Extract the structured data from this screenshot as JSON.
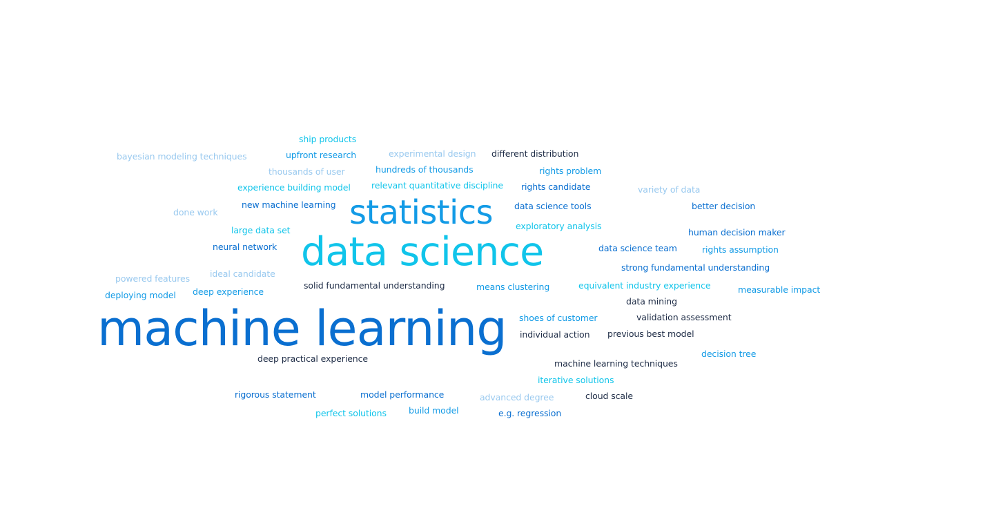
{
  "colors": {
    "blue": "#0a6fd0",
    "cyan": "#10c4ea",
    "sky": "#139be6",
    "pale": "#99c9ef",
    "dark": "#1e2c46",
    "background": "#ffffff"
  },
  "word_cloud": {
    "words": [
      {
        "id": "w-ml",
        "text": "machine learning",
        "weight": "xl",
        "color": "blue"
      },
      {
        "id": "w-ds",
        "text": "data science",
        "weight": "lg",
        "color": "cyan"
      },
      {
        "id": "w-st",
        "text": "statistics",
        "weight": "md",
        "color": "sky"
      },
      {
        "id": "w-1",
        "text": "ship products",
        "weight": "sm",
        "color": "cyan"
      },
      {
        "id": "w-2",
        "text": "bayesian modeling techniques",
        "weight": "sm",
        "color": "pale"
      },
      {
        "id": "w-3",
        "text": "upfront research",
        "weight": "sm",
        "color": "sky"
      },
      {
        "id": "w-4",
        "text": "experimental design",
        "weight": "sm",
        "color": "pale"
      },
      {
        "id": "w-5",
        "text": "different distribution",
        "weight": "sm",
        "color": "dark"
      },
      {
        "id": "w-6",
        "text": "thousands of user",
        "weight": "sm",
        "color": "pale"
      },
      {
        "id": "w-7",
        "text": "hundreds of thousands",
        "weight": "sm",
        "color": "sky"
      },
      {
        "id": "w-8",
        "text": "rights problem",
        "weight": "sm",
        "color": "sky"
      },
      {
        "id": "w-9",
        "text": "experience building model",
        "weight": "sm",
        "color": "cyan"
      },
      {
        "id": "w-10",
        "text": "relevant quantitative discipline",
        "weight": "sm",
        "color": "cyan"
      },
      {
        "id": "w-11",
        "text": "rights candidate",
        "weight": "sm",
        "color": "blue"
      },
      {
        "id": "w-12",
        "text": "variety of data",
        "weight": "sm",
        "color": "pale"
      },
      {
        "id": "w-13",
        "text": "new machine learning",
        "weight": "sm",
        "color": "blue"
      },
      {
        "id": "w-14",
        "text": "done work",
        "weight": "sm",
        "color": "pale"
      },
      {
        "id": "w-15",
        "text": "data science tools",
        "weight": "sm",
        "color": "blue"
      },
      {
        "id": "w-16",
        "text": "better decision",
        "weight": "sm",
        "color": "blue"
      },
      {
        "id": "w-17",
        "text": "large data set",
        "weight": "sm",
        "color": "cyan"
      },
      {
        "id": "w-18",
        "text": "exploratory analysis",
        "weight": "sm",
        "color": "cyan"
      },
      {
        "id": "w-19",
        "text": "human decision maker",
        "weight": "sm",
        "color": "blue"
      },
      {
        "id": "w-20",
        "text": "neural network",
        "weight": "sm",
        "color": "blue"
      },
      {
        "id": "w-21",
        "text": "data science team",
        "weight": "sm",
        "color": "blue"
      },
      {
        "id": "w-22",
        "text": "rights assumption",
        "weight": "sm",
        "color": "sky"
      },
      {
        "id": "w-23",
        "text": "strong fundamental understanding",
        "weight": "sm",
        "color": "blue"
      },
      {
        "id": "w-24",
        "text": "ideal candidate",
        "weight": "sm",
        "color": "pale"
      },
      {
        "id": "w-25",
        "text": "powered features",
        "weight": "sm",
        "color": "pale"
      },
      {
        "id": "w-26",
        "text": "solid fundamental understanding",
        "weight": "sm",
        "color": "dark"
      },
      {
        "id": "w-27",
        "text": "means clustering",
        "weight": "sm",
        "color": "sky"
      },
      {
        "id": "w-28",
        "text": "equivalent industry experience",
        "weight": "sm",
        "color": "cyan"
      },
      {
        "id": "w-29",
        "text": "measurable impact",
        "weight": "sm",
        "color": "sky"
      },
      {
        "id": "w-30",
        "text": "deep experience",
        "weight": "sm",
        "color": "sky"
      },
      {
        "id": "w-31",
        "text": "deploying model",
        "weight": "sm",
        "color": "sky"
      },
      {
        "id": "w-32",
        "text": "data mining",
        "weight": "sm",
        "color": "dark"
      },
      {
        "id": "w-33",
        "text": "shoes of customer",
        "weight": "sm",
        "color": "sky"
      },
      {
        "id": "w-34",
        "text": "validation assessment",
        "weight": "sm",
        "color": "dark"
      },
      {
        "id": "w-35",
        "text": "individual action",
        "weight": "sm",
        "color": "dark"
      },
      {
        "id": "w-36",
        "text": "previous best model",
        "weight": "sm",
        "color": "dark"
      },
      {
        "id": "w-37",
        "text": "decision tree",
        "weight": "sm",
        "color": "sky"
      },
      {
        "id": "w-38",
        "text": "deep practical experience",
        "weight": "sm",
        "color": "dark"
      },
      {
        "id": "w-39",
        "text": "machine learning techniques",
        "weight": "sm",
        "color": "dark"
      },
      {
        "id": "w-40",
        "text": "iterative solutions",
        "weight": "sm",
        "color": "cyan"
      },
      {
        "id": "w-41",
        "text": "rigorous statement",
        "weight": "sm",
        "color": "blue"
      },
      {
        "id": "w-42",
        "text": "model performance",
        "weight": "sm",
        "color": "blue"
      },
      {
        "id": "w-43",
        "text": "advanced degree",
        "weight": "sm",
        "color": "pale"
      },
      {
        "id": "w-44",
        "text": "cloud scale",
        "weight": "sm",
        "color": "dark"
      },
      {
        "id": "w-45",
        "text": "perfect solutions",
        "weight": "sm",
        "color": "cyan"
      },
      {
        "id": "w-46",
        "text": "build model",
        "weight": "sm",
        "color": "sky"
      },
      {
        "id": "w-47",
        "text": "e.g. regression",
        "weight": "sm",
        "color": "blue"
      }
    ]
  }
}
